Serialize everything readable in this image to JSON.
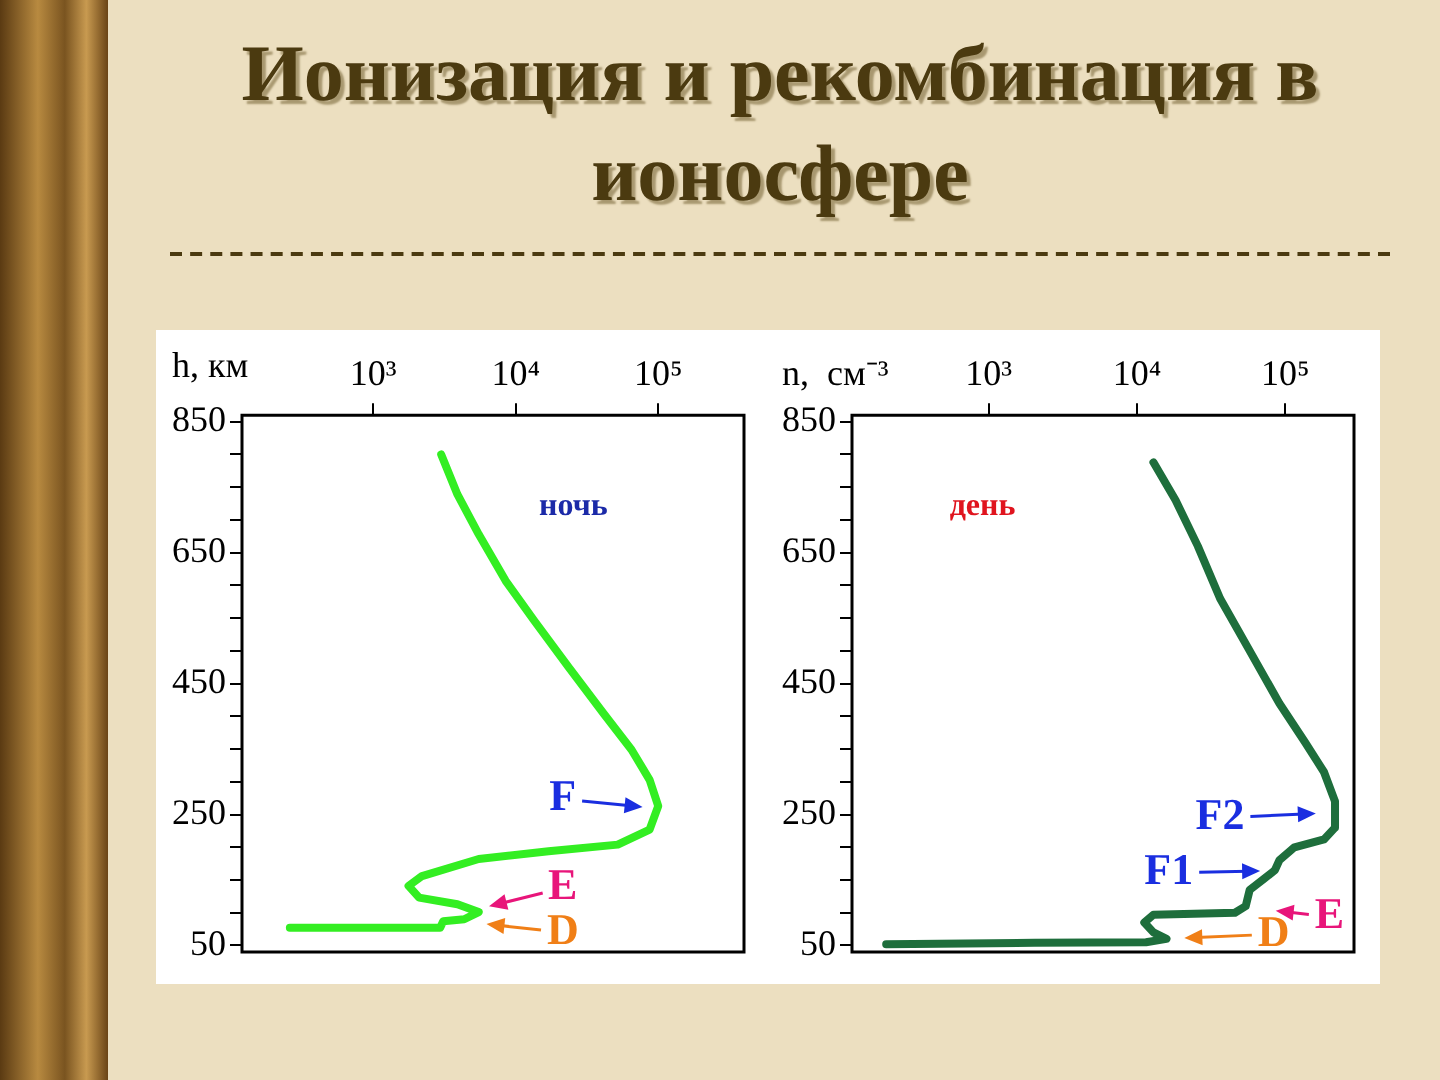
{
  "chart_data": [
    {
      "type": "line",
      "title": "Ионизация и рекомбинация в ионосфере",
      "ylabel": "h, км",
      "log": "x",
      "grid": false,
      "marker": "none",
      "line_style": "solid",
      "xlim": [
        120,
        400000
      ],
      "xticks": [
        {
          "value": 1000,
          "label": "10³"
        },
        {
          "value": 10000,
          "label": "10⁴"
        },
        {
          "value": 100000,
          "label": "10⁵"
        }
      ],
      "ylim": [
        40,
        860
      ],
      "yticks": [
        50,
        {
          "value": 100,
          "label": null
        },
        {
          "value": 150,
          "label": null
        },
        {
          "value": 200,
          "label": null
        },
        250,
        {
          "value": 300,
          "label": null
        },
        {
          "value": 350,
          "label": null
        },
        {
          "value": 400,
          "label": null
        },
        450,
        {
          "value": 500,
          "label": null
        },
        {
          "value": 550,
          "label": null
        },
        {
          "value": 600,
          "label": null
        },
        650,
        {
          "value": 700,
          "label": null
        },
        {
          "value": 750,
          "label": null
        },
        {
          "value": 800,
          "label": null
        },
        850
      ],
      "color": "#33ee22",
      "x": [
        3000,
        3900,
        5500,
        8500,
        13500,
        23500,
        41500,
        65000,
        87000,
        100000,
        87000,
        52000,
        17000,
        5500,
        2200,
        1770,
        2100,
        3900,
        5500,
        4350,
        3100,
        2950,
        1000,
        260
      ],
      "values": [
        800,
        739,
        678,
        607,
        546,
        475,
        404,
        349,
        303,
        263,
        227,
        204,
        194,
        182,
        156,
        141,
        123,
        113,
        101,
        90,
        87,
        77,
        77,
        77
      ],
      "annotations": [
        "ночь",
        "F",
        "E",
        "D"
      ]
    },
    {
      "type": "line",
      "xlabel": "n,  см⁻³",
      "log": "x",
      "grid": false,
      "marker": "none",
      "line_style": "solid",
      "xlim": [
        120,
        290000
      ],
      "xticks": [
        {
          "value": 1000,
          "label": "10³"
        },
        {
          "value": 10000,
          "label": "10⁴"
        },
        {
          "value": 100000,
          "label": "10⁵"
        }
      ],
      "ylim": [
        40,
        860
      ],
      "yticks": [
        50,
        {
          "value": 100,
          "label": null
        },
        {
          "value": 150,
          "label": null
        },
        {
          "value": 200,
          "label": null
        },
        250,
        {
          "value": 300,
          "label": null
        },
        {
          "value": 350,
          "label": null
        },
        {
          "value": 400,
          "label": null
        },
        450,
        {
          "value": 500,
          "label": null
        },
        {
          "value": 550,
          "label": null
        },
        {
          "value": 600,
          "label": null
        },
        650,
        {
          "value": 700,
          "label": null
        },
        {
          "value": 750,
          "label": null
        },
        {
          "value": 800,
          "label": null
        },
        850
      ],
      "color": "#1e6e3c",
      "x": [
        12900,
        18200,
        25700,
        36300,
        57500,
        91000,
        136000,
        182000,
        216000,
        216000,
        182000,
        115000,
        91000,
        85000,
        72000,
        57500,
        54000,
        45700,
        12900,
        11200,
        12900,
        15800,
        11500,
        2040,
        204
      ],
      "values": [
        788,
        730,
        660,
        580,
        500,
        420,
        360,
        315,
        270,
        230,
        212,
        200,
        180,
        165,
        152,
        135,
        110,
        100,
        97,
        85,
        70,
        60,
        55,
        54,
        52
      ],
      "annotations": [
        "день",
        "F2",
        "F1",
        "E",
        "D"
      ]
    }
  ]
}
